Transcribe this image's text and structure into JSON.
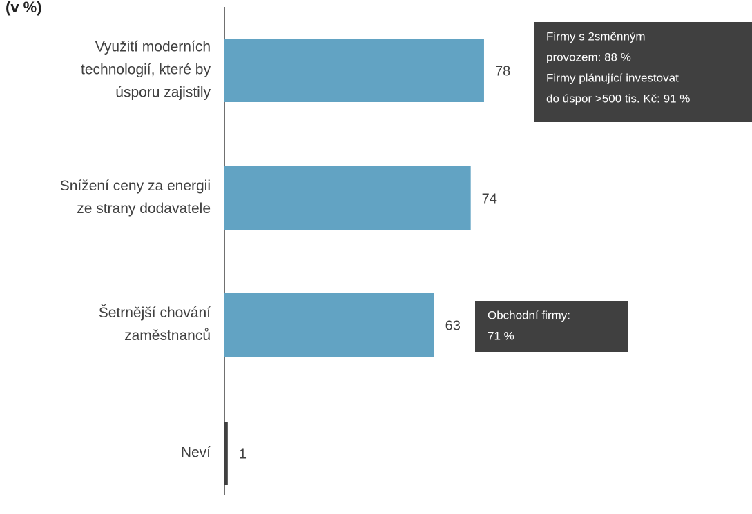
{
  "chart_data": {
    "type": "hbar",
    "title": "(v %)",
    "categories": [
      [
        "Využití moderních",
        "technologií, které by",
        "úsporu zajistily"
      ],
      [
        "Snížení ceny za energii",
        "ze strany dodavatele"
      ],
      [
        "Šetrnější chování",
        "zaměstnanců"
      ],
      [
        "Neví"
      ]
    ],
    "values": [
      78,
      74,
      63,
      1
    ],
    "color": "#62a3c3",
    "annotations": [
      {
        "lines": [
          "Firmy s 2směnným",
          "provozem: 88 %",
          "Firmy plánující investovat",
          "do úspor >500 tis. Kč: 91 %"
        ]
      },
      {
        "lines": [
          "Obchodní firmy:",
          "71 %"
        ]
      }
    ]
  }
}
